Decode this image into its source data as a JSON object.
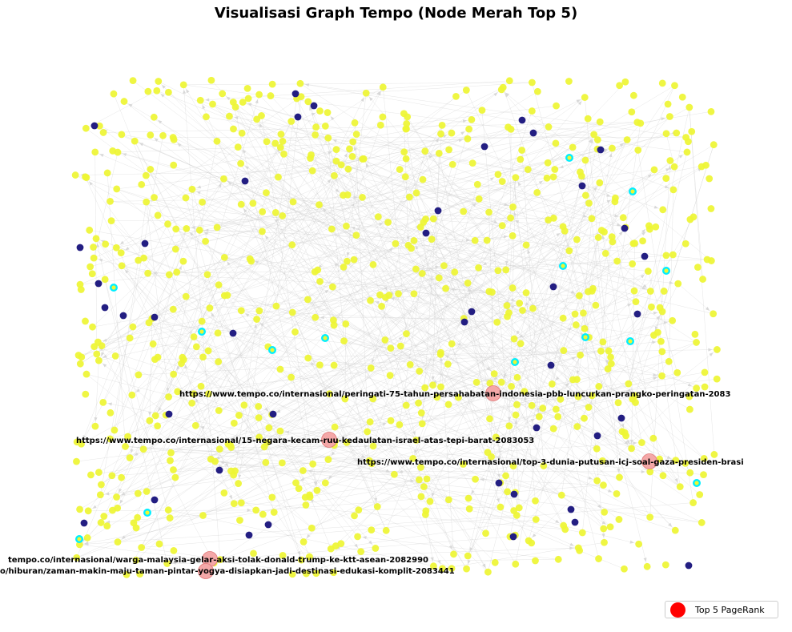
{
  "title": "Visualisasi Graph Tempo (Node Merah Top 5)",
  "legend": {
    "label": "Top 5 PageRank",
    "color": "#ff0000"
  },
  "colors": {
    "node_default": "#eef533",
    "node_dark": "#231e82",
    "node_ring": "#00eeff",
    "node_top": "#f4a8a8",
    "edge": "#c8c8c8"
  },
  "chart_data": {
    "type": "scatter",
    "title": "Visualisasi Graph Tempo (Node Merah Top 5)",
    "xlabel": "",
    "ylabel": "",
    "grid": false,
    "legend_position": "bottom-right",
    "top_nodes": [
      {
        "label": "https://www.tempo.co/internasional/peringati-75-tahun-persahabatan-indonesia-pbb-luncurkan-prangko-peringatan-2083"
      },
      {
        "label": "https://www.tempo.co/internasional/15-negara-kecam-ruu-kedaulatan-israel-atas-tepi-barat-2083053"
      },
      {
        "label": "https://www.tempo.co/internasional/top-3-dunia-putusan-icj-soal-gaza-presiden-brasi"
      },
      {
        "label": "tempo.co/internasional/warga-malaysia-gelar-aksi-tolak-donald-trump-ke-ktt-asean-2082990"
      },
      {
        "label": "o/hiburan/zaman-makin-maju-taman-pintar-yogya-disiapkan-jadi-destinasi-edukasi-komplit-2083441"
      }
    ]
  }
}
